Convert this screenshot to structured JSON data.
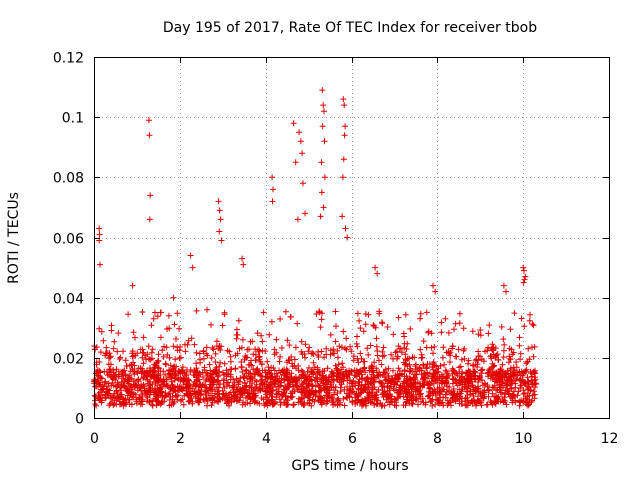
{
  "chart_data": {
    "type": "scatter",
    "title": "Day 195 of 2017, Rate Of TEC Index for receiver tbob",
    "xlabel": "GPS time / hours",
    "ylabel": "ROTI / TECUs",
    "xlim": [
      0,
      12
    ],
    "ylim": [
      0,
      0.12
    ],
    "x_ticks": [
      "0",
      "2",
      "4",
      "6",
      "8",
      "10",
      "12"
    ],
    "y_ticks": [
      "0",
      "0.02",
      "0.04",
      "0.06",
      "0.08",
      "0.1",
      "0.12"
    ],
    "grid": true,
    "marker": "+",
    "color": "#e00000",
    "series": [
      {
        "name": "ROTI",
        "note": "dense band of points between ~0.004 and ~0.03 TECU from 0 to ~10.3 h (generated procedurally), plus the notable outliers listed",
        "x_range": [
          0,
          10.3
        ],
        "outliers": [
          [
            0.12,
            0.063
          ],
          [
            0.13,
            0.061
          ],
          [
            0.12,
            0.059
          ],
          [
            0.14,
            0.051
          ],
          [
            1.28,
            0.099
          ],
          [
            1.29,
            0.094
          ],
          [
            1.31,
            0.074
          ],
          [
            1.3,
            0.066
          ],
          [
            2.9,
            0.072
          ],
          [
            2.93,
            0.069
          ],
          [
            2.95,
            0.066
          ],
          [
            2.92,
            0.062
          ],
          [
            2.97,
            0.059
          ],
          [
            4.15,
            0.08
          ],
          [
            4.17,
            0.076
          ],
          [
            4.16,
            0.072
          ],
          [
            4.65,
            0.098
          ],
          [
            4.78,
            0.095
          ],
          [
            4.82,
            0.092
          ],
          [
            4.7,
            0.085
          ],
          [
            4.85,
            0.088
          ],
          [
            4.87,
            0.078
          ],
          [
            4.92,
            0.068
          ],
          [
            4.75,
            0.066
          ],
          [
            5.32,
            0.109
          ],
          [
            5.34,
            0.104
          ],
          [
            5.36,
            0.102
          ],
          [
            5.33,
            0.097
          ],
          [
            5.37,
            0.092
          ],
          [
            5.3,
            0.085
          ],
          [
            5.38,
            0.08
          ],
          [
            5.31,
            0.075
          ],
          [
            5.35,
            0.07
          ],
          [
            5.28,
            0.067
          ],
          [
            5.81,
            0.106
          ],
          [
            5.83,
            0.104
          ],
          [
            5.85,
            0.097
          ],
          [
            5.84,
            0.094
          ],
          [
            5.82,
            0.086
          ],
          [
            5.8,
            0.08
          ],
          [
            5.78,
            0.067
          ],
          [
            5.86,
            0.063
          ],
          [
            5.9,
            0.06
          ],
          [
            3.45,
            0.053
          ],
          [
            3.48,
            0.051
          ],
          [
            2.25,
            0.054
          ],
          [
            2.3,
            0.05
          ],
          [
            6.55,
            0.05
          ],
          [
            6.6,
            0.048
          ],
          [
            9.55,
            0.044
          ],
          [
            9.6,
            0.042
          ],
          [
            10.0,
            0.05
          ],
          [
            10.02,
            0.049
          ],
          [
            10.05,
            0.047
          ],
          [
            10.03,
            0.046
          ],
          [
            10.01,
            0.045
          ],
          [
            7.9,
            0.044
          ],
          [
            7.95,
            0.042
          ],
          [
            0.9,
            0.044
          ],
          [
            1.85,
            0.04
          ]
        ]
      }
    ]
  }
}
